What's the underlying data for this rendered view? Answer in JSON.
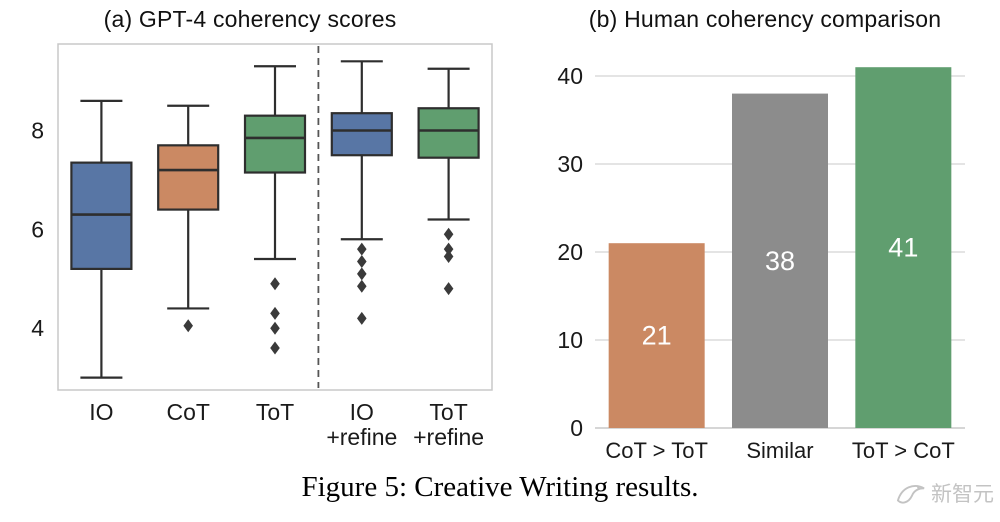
{
  "figure": {
    "caption": "Figure 5: Creative Writing results.",
    "watermark_text": "新智元"
  },
  "colors": {
    "blue": "#5876a5",
    "orange": "#cb8963",
    "green": "#609e6f",
    "gray": "#8c8c8c",
    "box_edge": "#2e2e2e",
    "grid": "#dcdcdc",
    "frame": "#c8c8c8",
    "text": "#1a1a1a",
    "watermark": "#c3c3c3"
  },
  "chart_data": [
    {
      "type": "boxplot",
      "title": "(a) GPT-4 coherency scores",
      "categories": [
        "IO",
        "CoT",
        "ToT",
        "IO\n+refine",
        "ToT\n+refine"
      ],
      "ylim": [
        2.75,
        9.75
      ],
      "yticks": [
        4,
        6,
        8
      ],
      "grid": false,
      "divider_after": 3,
      "series": [
        {
          "category": "IO",
          "color": "blue",
          "whisker_low": 3.0,
          "q1": 5.2,
          "median": 6.3,
          "q3": 7.35,
          "whisker_high": 8.6,
          "outliers": []
        },
        {
          "category": "CoT",
          "color": "orange",
          "whisker_low": 4.4,
          "q1": 6.4,
          "median": 7.2,
          "q3": 7.7,
          "whisker_high": 8.5,
          "outliers": [
            4.05
          ]
        },
        {
          "category": "ToT",
          "color": "green",
          "whisker_low": 5.4,
          "q1": 7.15,
          "median": 7.85,
          "q3": 8.3,
          "whisker_high": 9.3,
          "outliers": [
            4.9,
            4.3,
            4.0,
            3.6
          ]
        },
        {
          "category": "IO\n+refine",
          "color": "blue",
          "whisker_low": 5.8,
          "q1": 7.5,
          "median": 8.0,
          "q3": 8.35,
          "whisker_high": 9.4,
          "outliers": [
            5.6,
            5.35,
            5.1,
            4.85,
            4.2
          ]
        },
        {
          "category": "ToT\n+refine",
          "color": "green",
          "whisker_low": 6.2,
          "q1": 7.45,
          "median": 8.0,
          "q3": 8.45,
          "whisker_high": 9.25,
          "outliers": [
            5.9,
            5.6,
            5.45,
            4.8
          ]
        }
      ]
    },
    {
      "type": "bar",
      "title": "(b) Human coherency comparison",
      "categories": [
        "CoT > ToT",
        "Similar",
        "ToT > CoT"
      ],
      "values": [
        21,
        38,
        41
      ],
      "bar_colors": [
        "orange",
        "gray",
        "green"
      ],
      "value_labels": [
        "21",
        "38",
        "41"
      ],
      "value_label_color": "#ffffff",
      "ylim": [
        0,
        42.5
      ],
      "yticks": [
        0,
        10,
        20,
        30,
        40
      ],
      "grid": true
    }
  ]
}
